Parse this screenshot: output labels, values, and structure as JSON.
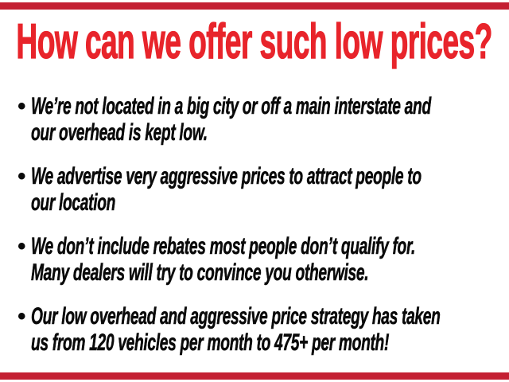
{
  "slide": {
    "title": "How can we offer such low prices?",
    "colors": {
      "title_red": "#e8242b",
      "bar_red": "#c42033",
      "text_black": "#0a0a0a",
      "background": "#ffffff"
    },
    "list": {
      "marker_glyph": "•",
      "bullets": [
        {
          "lines": [
            "We’re not located in a big city or off a main interstate and",
            "our overhead is kept low."
          ]
        },
        {
          "lines": [
            "We advertise very aggressive prices to attract people to",
            "our location"
          ]
        },
        {
          "lines": [
            "We don’t include rebates most people don’t qualify for.",
            "Many dealers will try to convince you otherwise."
          ]
        },
        {
          "lines": [
            "Our low overhead and aggressive price strategy has taken",
            "us from 120 vehicles per month to 475+ per month!"
          ]
        }
      ]
    }
  }
}
